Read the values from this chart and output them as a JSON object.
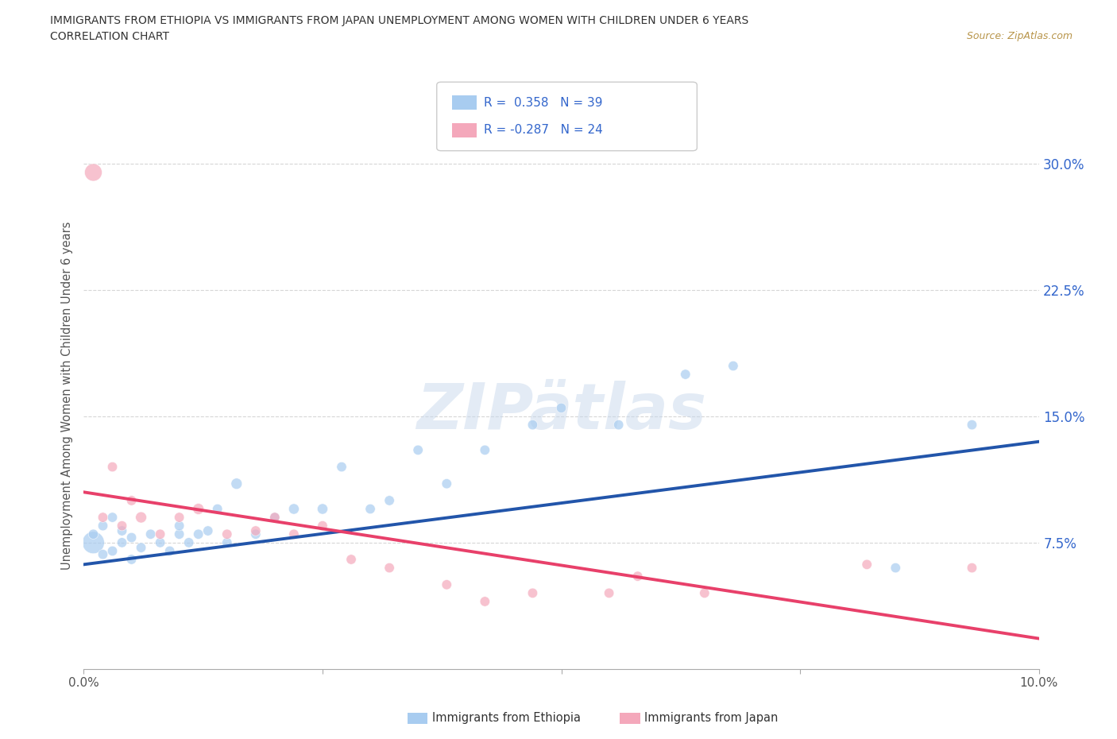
{
  "title_line1": "IMMIGRANTS FROM ETHIOPIA VS IMMIGRANTS FROM JAPAN UNEMPLOYMENT AMONG WOMEN WITH CHILDREN UNDER 6 YEARS",
  "title_line2": "CORRELATION CHART",
  "source": "Source: ZipAtlas.com",
  "ylabel": "Unemployment Among Women with Children Under 6 years",
  "xlim": [
    0.0,
    0.1
  ],
  "ylim": [
    0.0,
    0.325
  ],
  "xtick_positions": [
    0.0,
    0.025,
    0.05,
    0.075,
    0.1
  ],
  "xtick_labels": [
    "0.0%",
    "",
    "",
    "",
    "10.0%"
  ],
  "ytick_positions": [
    0.075,
    0.15,
    0.225,
    0.3
  ],
  "ytick_labels": [
    "7.5%",
    "15.0%",
    "22.5%",
    "30.0%"
  ],
  "R_ethiopia": 0.358,
  "N_ethiopia": 39,
  "R_japan": -0.287,
  "N_japan": 24,
  "color_ethiopia": "#A8CCF0",
  "color_japan": "#F4A8BB",
  "trendline_ethiopia_color": "#2255AA",
  "trendline_japan_color": "#E8406A",
  "watermark": "ZIPätlas",
  "ethiopia_x": [
    0.001,
    0.001,
    0.002,
    0.002,
    0.003,
    0.003,
    0.004,
    0.004,
    0.005,
    0.005,
    0.006,
    0.007,
    0.008,
    0.009,
    0.01,
    0.01,
    0.011,
    0.012,
    0.013,
    0.014,
    0.015,
    0.016,
    0.018,
    0.02,
    0.022,
    0.025,
    0.027,
    0.03,
    0.032,
    0.035,
    0.038,
    0.042,
    0.047,
    0.05,
    0.056,
    0.063,
    0.068,
    0.085,
    0.093
  ],
  "ethiopia_y": [
    0.075,
    0.08,
    0.068,
    0.085,
    0.07,
    0.09,
    0.075,
    0.082,
    0.065,
    0.078,
    0.072,
    0.08,
    0.075,
    0.07,
    0.08,
    0.085,
    0.075,
    0.08,
    0.082,
    0.095,
    0.075,
    0.11,
    0.08,
    0.09,
    0.095,
    0.095,
    0.12,
    0.095,
    0.1,
    0.13,
    0.11,
    0.13,
    0.145,
    0.155,
    0.145,
    0.175,
    0.18,
    0.06,
    0.145
  ],
  "ethiopia_size": [
    400,
    80,
    80,
    80,
    80,
    80,
    80,
    80,
    80,
    80,
    80,
    80,
    80,
    80,
    80,
    80,
    80,
    80,
    80,
    80,
    80,
    100,
    80,
    80,
    90,
    90,
    80,
    80,
    80,
    80,
    80,
    80,
    80,
    80,
    80,
    80,
    80,
    80,
    80
  ],
  "japan_x": [
    0.001,
    0.002,
    0.003,
    0.004,
    0.005,
    0.006,
    0.008,
    0.01,
    0.012,
    0.015,
    0.018,
    0.02,
    0.022,
    0.025,
    0.028,
    0.032,
    0.038,
    0.042,
    0.047,
    0.055,
    0.058,
    0.065,
    0.082,
    0.093
  ],
  "japan_y": [
    0.295,
    0.09,
    0.12,
    0.085,
    0.1,
    0.09,
    0.08,
    0.09,
    0.095,
    0.08,
    0.082,
    0.09,
    0.08,
    0.085,
    0.065,
    0.06,
    0.05,
    0.04,
    0.045,
    0.045,
    0.055,
    0.045,
    0.062,
    0.06
  ],
  "japan_size": [
    250,
    80,
    80,
    80,
    80,
    100,
    80,
    80,
    100,
    80,
    80,
    80,
    80,
    80,
    80,
    80,
    80,
    80,
    80,
    80,
    80,
    80,
    80,
    80
  ],
  "background_color": "#FFFFFF",
  "grid_color": "#CCCCCC",
  "legend_text_color": "#3366CC"
}
